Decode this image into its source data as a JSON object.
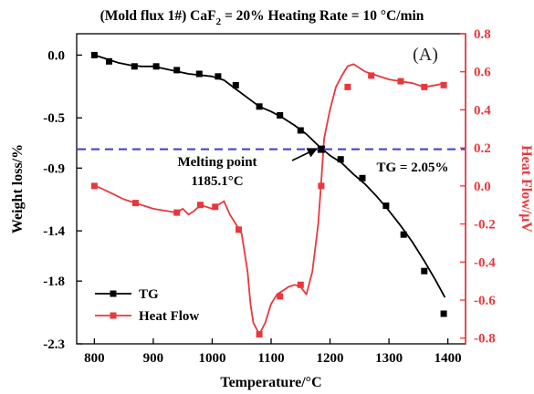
{
  "chart_data": {
    "type": "line",
    "title_prefix": "(Mold flux 1#) CaF",
    "title_sub": "2",
    "title_suffix": " = 20% Heating Rate = 10 °C/min",
    "panel_label": "(A)",
    "xlabel": "Temperature/°C",
    "ylabel_left": "Weight loss/%",
    "ylabel_right": "Heat Flow/μV",
    "xlim": [
      770,
      1430
    ],
    "ylim_left": [
      -2.3,
      0.17
    ],
    "ylim_right": [
      -0.83,
      0.8
    ],
    "x_ticks": [
      800,
      900,
      1000,
      1100,
      1200,
      1300,
      1400
    ],
    "y_left_ticks": [
      0.0,
      -0.5,
      -0.9,
      -1.4,
      -1.8,
      -2.3
    ],
    "y_left_tick_labels": [
      "0.0",
      "-0.5",
      "-0.9",
      "-1.4",
      "-1.8",
      "-2.3"
    ],
    "y_right_ticks": [
      0.8,
      0.6,
      0.4,
      0.2,
      0.0,
      -0.2,
      -0.4,
      -0.6,
      -0.8
    ],
    "y_right_tick_labels": [
      "0.8",
      "0.6",
      "0.4",
      "0.2",
      "0.0",
      "-0.2",
      "-0.4",
      "-0.6",
      "-0.8"
    ],
    "reference_line": {
      "axis": "left",
      "y": -0.75,
      "color": "#3a3ad0"
    },
    "annotations": {
      "melting_line1": "Melting point",
      "melting_line2": "1185.1°C",
      "tg_text": "TG = 2.05%",
      "marker_x": 1185.1,
      "marker_y": -0.75
    },
    "legend": {
      "position": "bottom-left"
    },
    "series": [
      {
        "name": "TG",
        "axis": "left",
        "color": "#000000",
        "x": [
          800,
          820,
          840,
          860,
          880,
          900,
          920,
          940,
          960,
          980,
          1000,
          1020,
          1040,
          1060,
          1080,
          1100,
          1120,
          1140,
          1160,
          1180,
          1200,
          1220,
          1240,
          1260,
          1280,
          1300,
          1320,
          1340,
          1360,
          1380,
          1395
        ],
        "y": [
          0.0,
          -0.03,
          -0.06,
          -0.08,
          -0.09,
          -0.09,
          -0.11,
          -0.13,
          -0.15,
          -0.16,
          -0.17,
          -0.2,
          -0.27,
          -0.34,
          -0.41,
          -0.45,
          -0.5,
          -0.56,
          -0.63,
          -0.72,
          -0.8,
          -0.86,
          -0.95,
          -1.03,
          -1.13,
          -1.24,
          -1.36,
          -1.49,
          -1.64,
          -1.8,
          -1.93
        ],
        "marker_x": [
          800,
          825,
          868,
          905,
          940,
          978,
          1010,
          1040,
          1080,
          1115,
          1150,
          1185,
          1218,
          1255,
          1295,
          1325,
          1360,
          1393
        ],
        "marker_y": [
          0.0,
          -0.05,
          -0.09,
          -0.09,
          -0.12,
          -0.15,
          -0.17,
          -0.24,
          -0.41,
          -0.48,
          -0.6,
          -0.75,
          -0.83,
          -0.98,
          -1.2,
          -1.43,
          -1.72,
          -2.06
        ]
      },
      {
        "name": "Heat Flow",
        "axis": "right",
        "color": "#e8383d",
        "x": [
          800,
          810,
          830,
          850,
          870,
          900,
          920,
          940,
          950,
          960,
          970,
          980,
          990,
          1000,
          1010,
          1020,
          1030,
          1040,
          1050,
          1060,
          1065,
          1070,
          1080,
          1090,
          1100,
          1110,
          1120,
          1130,
          1140,
          1150,
          1160,
          1170,
          1180,
          1185,
          1190,
          1200,
          1210,
          1220,
          1230,
          1240,
          1250,
          1260,
          1280,
          1300,
          1320,
          1340,
          1360,
          1380,
          1395
        ],
        "y": [
          0.0,
          -0.01,
          -0.04,
          -0.07,
          -0.09,
          -0.12,
          -0.13,
          -0.14,
          -0.12,
          -0.15,
          -0.13,
          -0.1,
          -0.11,
          -0.12,
          -0.1,
          -0.08,
          -0.15,
          -0.2,
          -0.25,
          -0.45,
          -0.62,
          -0.72,
          -0.78,
          -0.72,
          -0.62,
          -0.57,
          -0.55,
          -0.53,
          -0.52,
          -0.53,
          -0.57,
          -0.45,
          -0.2,
          0.02,
          0.25,
          0.4,
          0.52,
          0.58,
          0.63,
          0.64,
          0.62,
          0.6,
          0.58,
          0.56,
          0.55,
          0.54,
          0.52,
          0.53,
          0.54
        ],
        "marker_x": [
          800,
          870,
          940,
          980,
          1005,
          1045,
          1080,
          1115,
          1150,
          1185,
          1230,
          1270,
          1320,
          1360,
          1393
        ],
        "marker_y": [
          0.0,
          -0.09,
          -0.14,
          -0.1,
          -0.11,
          -0.23,
          -0.78,
          -0.58,
          -0.52,
          0.0,
          0.52,
          0.58,
          0.55,
          0.52,
          0.53
        ]
      }
    ]
  }
}
